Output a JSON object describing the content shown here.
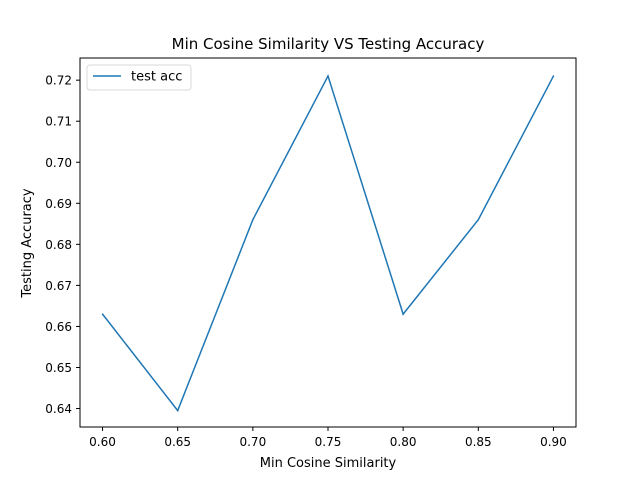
{
  "chart_data": {
    "type": "line",
    "title": "Min Cosine Similarity VS Testing Accuracy",
    "xlabel": "Min Cosine Similarity",
    "ylabel": "Testing Accuracy",
    "x": [
      0.6,
      0.65,
      0.7,
      0.75,
      0.8,
      0.85,
      0.9
    ],
    "x_tick_labels": [
      "0.60",
      "0.65",
      "0.70",
      "0.75",
      "0.80",
      "0.85",
      "0.90"
    ],
    "y_ticks": [
      0.64,
      0.65,
      0.66,
      0.67,
      0.68,
      0.69,
      0.7,
      0.71,
      0.72
    ],
    "y_tick_labels": [
      "0.64",
      "0.65",
      "0.66",
      "0.67",
      "0.68",
      "0.69",
      "0.70",
      "0.71",
      "0.72"
    ],
    "xlim": [
      0.585,
      0.915
    ],
    "ylim": [
      0.6355,
      0.7254
    ],
    "grid": false,
    "legend_position": "upper left",
    "series": [
      {
        "name": "test acc",
        "color": "#1f77b4",
        "values": [
          0.663,
          0.6395,
          0.686,
          0.721,
          0.663,
          0.686,
          0.721
        ]
      }
    ]
  }
}
